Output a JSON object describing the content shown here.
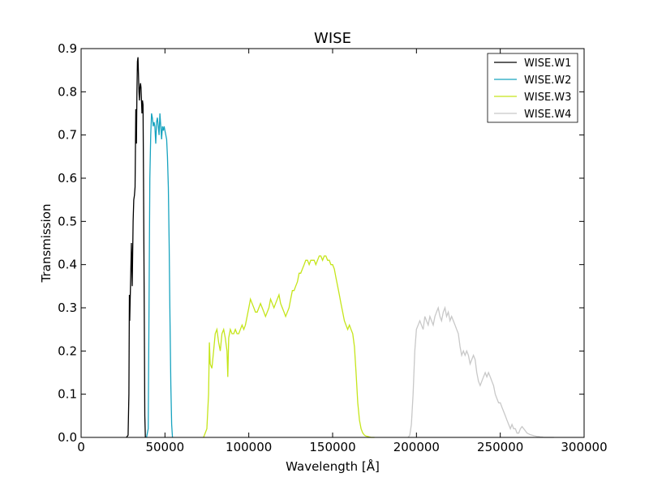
{
  "chart_data": {
    "type": "line",
    "title": "WISE",
    "xlabel": "Wavelength [Å]",
    "ylabel": "Transmission",
    "xlim": [
      0,
      300000
    ],
    "ylim": [
      0,
      0.9
    ],
    "xticks": [
      0,
      50000,
      100000,
      150000,
      200000,
      250000,
      300000
    ],
    "xtick_labels": [
      "0",
      "50000",
      "100000",
      "150000",
      "200000",
      "250000",
      "300000"
    ],
    "yticks": [
      0.0,
      0.1,
      0.2,
      0.3,
      0.4,
      0.5,
      0.6,
      0.7,
      0.8,
      0.9
    ],
    "ytick_labels": [
      "0.0",
      "0.1",
      "0.2",
      "0.3",
      "0.4",
      "0.5",
      "0.6",
      "0.7",
      "0.8",
      "0.9"
    ],
    "grid": false,
    "legend_position": "top-right",
    "series": [
      {
        "name": "WISE.W1",
        "color": "#000000",
        "x": [
          27000,
          28000,
          28500,
          28800,
          29000,
          29300,
          29600,
          30000,
          30500,
          31000,
          31400,
          31800,
          32200,
          32600,
          33000,
          33300,
          33600,
          33900,
          34200,
          34500,
          34800,
          35100,
          35400,
          35700,
          36000,
          36300,
          36600,
          36900,
          37200,
          37500,
          37800,
          38000,
          38300
        ],
        "y": [
          0.0,
          0.005,
          0.1,
          0.33,
          0.27,
          0.33,
          0.38,
          0.45,
          0.35,
          0.5,
          0.55,
          0.56,
          0.58,
          0.76,
          0.68,
          0.8,
          0.87,
          0.88,
          0.84,
          0.8,
          0.78,
          0.81,
          0.82,
          0.81,
          0.78,
          0.75,
          0.78,
          0.77,
          0.6,
          0.4,
          0.2,
          0.05,
          0.0
        ]
      },
      {
        "name": "WISE.W2",
        "color": "#17a3bf",
        "x": [
          39000,
          40000,
          40500,
          41000,
          41500,
          42000,
          42500,
          43000,
          43500,
          44000,
          44500,
          45000,
          45500,
          46000,
          46500,
          47000,
          47500,
          48000,
          48500,
          49000,
          49500,
          50000,
          50500,
          51000,
          51500,
          52000,
          52500,
          53000,
          53500,
          54000,
          54500
        ],
        "y": [
          0.0,
          0.02,
          0.3,
          0.6,
          0.7,
          0.75,
          0.74,
          0.72,
          0.73,
          0.72,
          0.68,
          0.73,
          0.74,
          0.72,
          0.7,
          0.75,
          0.72,
          0.69,
          0.72,
          0.71,
          0.72,
          0.71,
          0.7,
          0.69,
          0.65,
          0.58,
          0.45,
          0.28,
          0.12,
          0.03,
          0.0
        ]
      },
      {
        "name": "WISE.W3",
        "color": "#c5e51a",
        "x": [
          73000,
          75000,
          76000,
          76500,
          77000,
          78000,
          79000,
          80000,
          81000,
          82000,
          83000,
          84000,
          85000,
          86000,
          87000,
          87500,
          88000,
          89000,
          90000,
          91000,
          92000,
          93000,
          94000,
          95000,
          96000,
          97000,
          98000,
          99000,
          100000,
          101000,
          102000,
          103000,
          104000,
          105000,
          106000,
          107000,
          108000,
          109000,
          110000,
          111000,
          112000,
          113000,
          114000,
          115000,
          116000,
          117000,
          118000,
          119000,
          120000,
          121000,
          122000,
          123000,
          124000,
          125000,
          126000,
          127000,
          128000,
          129000,
          130000,
          131000,
          132000,
          133000,
          134000,
          135000,
          136000,
          137000,
          138000,
          139000,
          140000,
          141000,
          142000,
          143000,
          144000,
          145000,
          146000,
          147000,
          148000,
          149000,
          150000,
          151000,
          152000,
          153000,
          154000,
          155000,
          156000,
          157000,
          158000,
          159000,
          160000,
          161000,
          162000,
          163000,
          164000,
          165000,
          166000,
          167000,
          168000,
          169000,
          170000,
          171000,
          172000,
          173000,
          175000
        ],
        "y": [
          0.0,
          0.02,
          0.1,
          0.22,
          0.17,
          0.16,
          0.2,
          0.24,
          0.25,
          0.22,
          0.2,
          0.24,
          0.25,
          0.23,
          0.2,
          0.14,
          0.23,
          0.25,
          0.24,
          0.24,
          0.25,
          0.24,
          0.24,
          0.25,
          0.26,
          0.25,
          0.26,
          0.28,
          0.3,
          0.32,
          0.31,
          0.3,
          0.29,
          0.29,
          0.3,
          0.31,
          0.3,
          0.29,
          0.28,
          0.29,
          0.3,
          0.32,
          0.31,
          0.3,
          0.31,
          0.32,
          0.33,
          0.31,
          0.3,
          0.29,
          0.28,
          0.29,
          0.3,
          0.32,
          0.34,
          0.34,
          0.35,
          0.36,
          0.38,
          0.38,
          0.39,
          0.4,
          0.41,
          0.41,
          0.4,
          0.41,
          0.41,
          0.41,
          0.4,
          0.41,
          0.42,
          0.42,
          0.41,
          0.42,
          0.42,
          0.41,
          0.41,
          0.4,
          0.4,
          0.39,
          0.37,
          0.35,
          0.33,
          0.31,
          0.29,
          0.27,
          0.26,
          0.25,
          0.26,
          0.25,
          0.24,
          0.21,
          0.15,
          0.08,
          0.04,
          0.02,
          0.01,
          0.005,
          0.003,
          0.002,
          0.001,
          0.0,
          0.0
        ]
      },
      {
        "name": "WISE.W4",
        "color": "#c8c8c8",
        "x": [
          195000,
          196000,
          197000,
          198000,
          199000,
          200000,
          201000,
          202000,
          203000,
          204000,
          205000,
          206000,
          207000,
          208000,
          209000,
          210000,
          211000,
          212000,
          213000,
          214000,
          215000,
          216000,
          217000,
          218000,
          219000,
          220000,
          221000,
          222000,
          223000,
          224000,
          225000,
          226000,
          227000,
          228000,
          229000,
          230000,
          231000,
          232000,
          233000,
          234000,
          235000,
          236000,
          237000,
          238000,
          239000,
          240000,
          241000,
          242000,
          243000,
          244000,
          245000,
          246000,
          247000,
          248000,
          249000,
          250000,
          251000,
          252000,
          253000,
          254000,
          255000,
          256000,
          257000,
          258000,
          259000,
          260000,
          261000,
          262000,
          263000,
          264000,
          265000,
          266000,
          267000,
          268000,
          269000,
          270000,
          271000,
          272000,
          273000,
          274000,
          275000,
          276000,
          277000,
          278000,
          279000,
          280000,
          282000
        ],
        "y": [
          0.0,
          0.005,
          0.03,
          0.1,
          0.2,
          0.25,
          0.26,
          0.27,
          0.26,
          0.25,
          0.28,
          0.27,
          0.26,
          0.28,
          0.27,
          0.26,
          0.28,
          0.29,
          0.3,
          0.28,
          0.27,
          0.29,
          0.3,
          0.28,
          0.29,
          0.27,
          0.28,
          0.27,
          0.26,
          0.25,
          0.24,
          0.21,
          0.19,
          0.2,
          0.19,
          0.2,
          0.19,
          0.17,
          0.18,
          0.19,
          0.18,
          0.15,
          0.13,
          0.12,
          0.13,
          0.14,
          0.15,
          0.14,
          0.15,
          0.14,
          0.13,
          0.12,
          0.1,
          0.09,
          0.08,
          0.08,
          0.07,
          0.06,
          0.05,
          0.04,
          0.03,
          0.02,
          0.03,
          0.02,
          0.02,
          0.01,
          0.01,
          0.02,
          0.025,
          0.02,
          0.015,
          0.01,
          0.008,
          0.006,
          0.005,
          0.004,
          0.003,
          0.002,
          0.002,
          0.001,
          0.001,
          0.0,
          0.0,
          0.0,
          0.0,
          0.0,
          0.0
        ]
      }
    ]
  }
}
